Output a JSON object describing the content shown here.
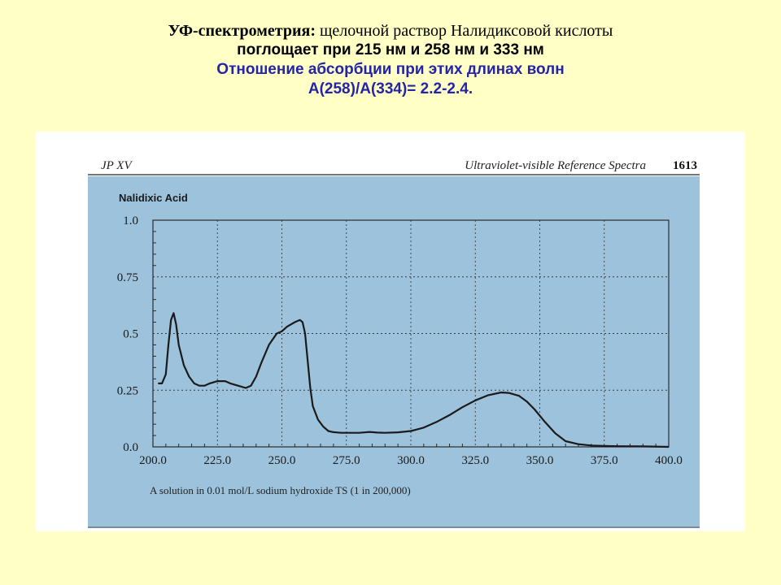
{
  "header": {
    "line1_bold": "УФ-спектрометрия:",
    "line1_rest": " щелочной раствор Налидиксовой кислоты",
    "line2": "поглощает при 215 нм и 258 нм и 333 нм",
    "line3": "Отношение абсорбции при этих длинах волн",
    "line4": "A(258)/A(334)= 2.2-2.4.",
    "accent_color": "#2424a8"
  },
  "figure": {
    "left_header": "JP XV",
    "center_header": "Ultraviolet-visible Reference Spectra",
    "page_number": "1613",
    "panel_color": "#9dc3dc"
  },
  "chart_data": {
    "type": "line",
    "title": "Nalidixic Acid",
    "xlabel": "",
    "ylabel": "",
    "annotation": "A solution in 0.01 mol/L sodium hydroxide TS (1 in 200,000)",
    "xlim": [
      200,
      400
    ],
    "ylim": [
      0,
      1
    ],
    "x_ticks": [
      "200.0",
      "225.0",
      "250.0",
      "275.0",
      "300.0",
      "325.0",
      "350.0",
      "375.0",
      "400.0"
    ],
    "y_ticks": [
      "0.0",
      "0.25",
      "0.5",
      "0.75",
      "1.0"
    ],
    "grid": true,
    "series": [
      {
        "color": "#1a1a1a",
        "x": [
          202,
          203.5,
          205,
          206,
          207,
          208,
          209,
          210,
          212,
          214,
          216,
          218,
          220,
          222,
          225,
          228,
          230,
          233,
          236,
          238,
          240,
          242,
          245,
          248,
          250,
          252,
          255,
          257,
          258,
          259,
          260,
          261,
          262,
          264,
          266,
          268,
          270,
          273,
          276,
          280,
          284,
          287,
          290,
          295,
          300,
          305,
          310,
          315,
          320,
          325,
          330,
          335,
          338,
          342,
          345,
          348,
          352,
          356,
          360,
          365,
          370,
          375,
          380,
          390,
          400
        ],
        "y": [
          0.28,
          0.28,
          0.32,
          0.45,
          0.56,
          0.59,
          0.54,
          0.45,
          0.36,
          0.31,
          0.28,
          0.27,
          0.27,
          0.28,
          0.29,
          0.29,
          0.28,
          0.27,
          0.26,
          0.27,
          0.31,
          0.37,
          0.45,
          0.5,
          0.51,
          0.53,
          0.55,
          0.56,
          0.55,
          0.5,
          0.38,
          0.26,
          0.18,
          0.12,
          0.09,
          0.07,
          0.065,
          0.062,
          0.062,
          0.062,
          0.066,
          0.063,
          0.062,
          0.064,
          0.07,
          0.085,
          0.11,
          0.14,
          0.175,
          0.205,
          0.228,
          0.24,
          0.238,
          0.225,
          0.2,
          0.165,
          0.11,
          0.06,
          0.025,
          0.012,
          0.006,
          0.004,
          0.003,
          0.002,
          0.0
        ]
      }
    ]
  }
}
